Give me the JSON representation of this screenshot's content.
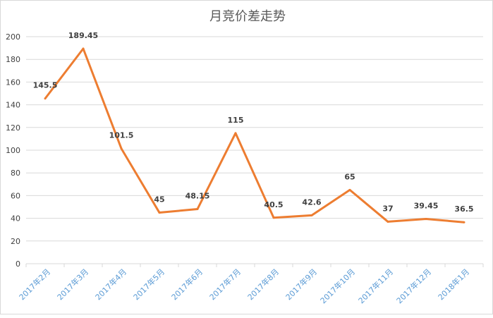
{
  "chart_data": {
    "type": "line",
    "title": "月竞价差走势",
    "xlabel": "",
    "ylabel": "",
    "categories": [
      "2017年2月",
      "2017年3月",
      "2017年4月",
      "2017年5月",
      "2017年6月",
      "2017年7月",
      "2017年8月",
      "2017年9月",
      "2017年10月",
      "2017年11月",
      "2017年12月",
      "2018年1月"
    ],
    "values": [
      145.5,
      189.45,
      101.5,
      45,
      48.15,
      115,
      40.5,
      42.6,
      65,
      37,
      39.45,
      36.5
    ],
    "data_labels": [
      "145.5",
      "189.45",
      "101.5",
      "45",
      "48.15",
      "115",
      "40.5",
      "42.6",
      "65",
      "37",
      "39.45",
      "36.5"
    ],
    "ylim": [
      0,
      200
    ],
    "yticks": [
      "0",
      "20",
      "40",
      "60",
      "80",
      "100",
      "120",
      "140",
      "160",
      "180",
      "200"
    ],
    "grid": true,
    "legend": "none",
    "colors": {
      "line": "#ed7d31",
      "xtick": "#5b9bd5",
      "grid": "#d9d9d9",
      "text": "#404040"
    }
  }
}
